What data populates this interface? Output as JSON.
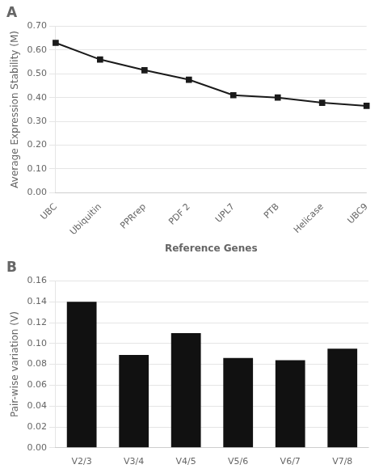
{
  "chart_data": [
    {
      "type": "line",
      "title": "A",
      "categories": [
        "UBC",
        "Ubiquitin",
        "PPRrep",
        "PDF 2",
        "UPL7",
        "PTB",
        "Helicase",
        "UBC9"
      ],
      "values": [
        0.63,
        0.56,
        0.515,
        0.475,
        0.41,
        0.4,
        0.378,
        0.365
      ],
      "color": "#1a1a1a",
      "marker": "square",
      "xlabel": "Reference Genes",
      "ylabel": "Average Expression Stability (M)",
      "ylim": [
        0.0,
        0.7
      ],
      "yticks": [
        {
          "value": 0.0,
          "label": "0.00"
        },
        {
          "value": 0.1,
          "label": "0.10"
        },
        {
          "value": 0.2,
          "label": "0.20"
        },
        {
          "value": 0.3,
          "label": "0.30"
        },
        {
          "value": 0.4,
          "label": "0.40"
        },
        {
          "value": 0.5,
          "label": "0.50"
        },
        {
          "value": 0.6,
          "label": "0.60"
        },
        {
          "value": 0.7,
          "label": "0.70"
        }
      ],
      "grid": true
    },
    {
      "type": "bar",
      "title": "B",
      "categories": [
        "V2/3",
        "V3/4",
        "V4/5",
        "V5/6",
        "V6/7",
        "V7/8"
      ],
      "values": [
        0.14,
        0.089,
        0.11,
        0.086,
        0.084,
        0.095
      ],
      "color": "#111111",
      "ylabel": "Pair-wise variation (V)",
      "ylim": [
        0.0,
        0.16
      ],
      "yticks": [
        {
          "value": 0.0,
          "label": "0.00"
        },
        {
          "value": 0.02,
          "label": "0.02"
        },
        {
          "value": 0.04,
          "label": "0.04"
        },
        {
          "value": 0.06,
          "label": "0.06"
        },
        {
          "value": 0.08,
          "label": "0.08"
        },
        {
          "value": 0.1,
          "label": "0.10"
        },
        {
          "value": 0.12,
          "label": "0.12"
        },
        {
          "value": 0.14,
          "label": "0.14"
        },
        {
          "value": 0.16,
          "label": "0.16"
        }
      ],
      "grid": true
    }
  ]
}
